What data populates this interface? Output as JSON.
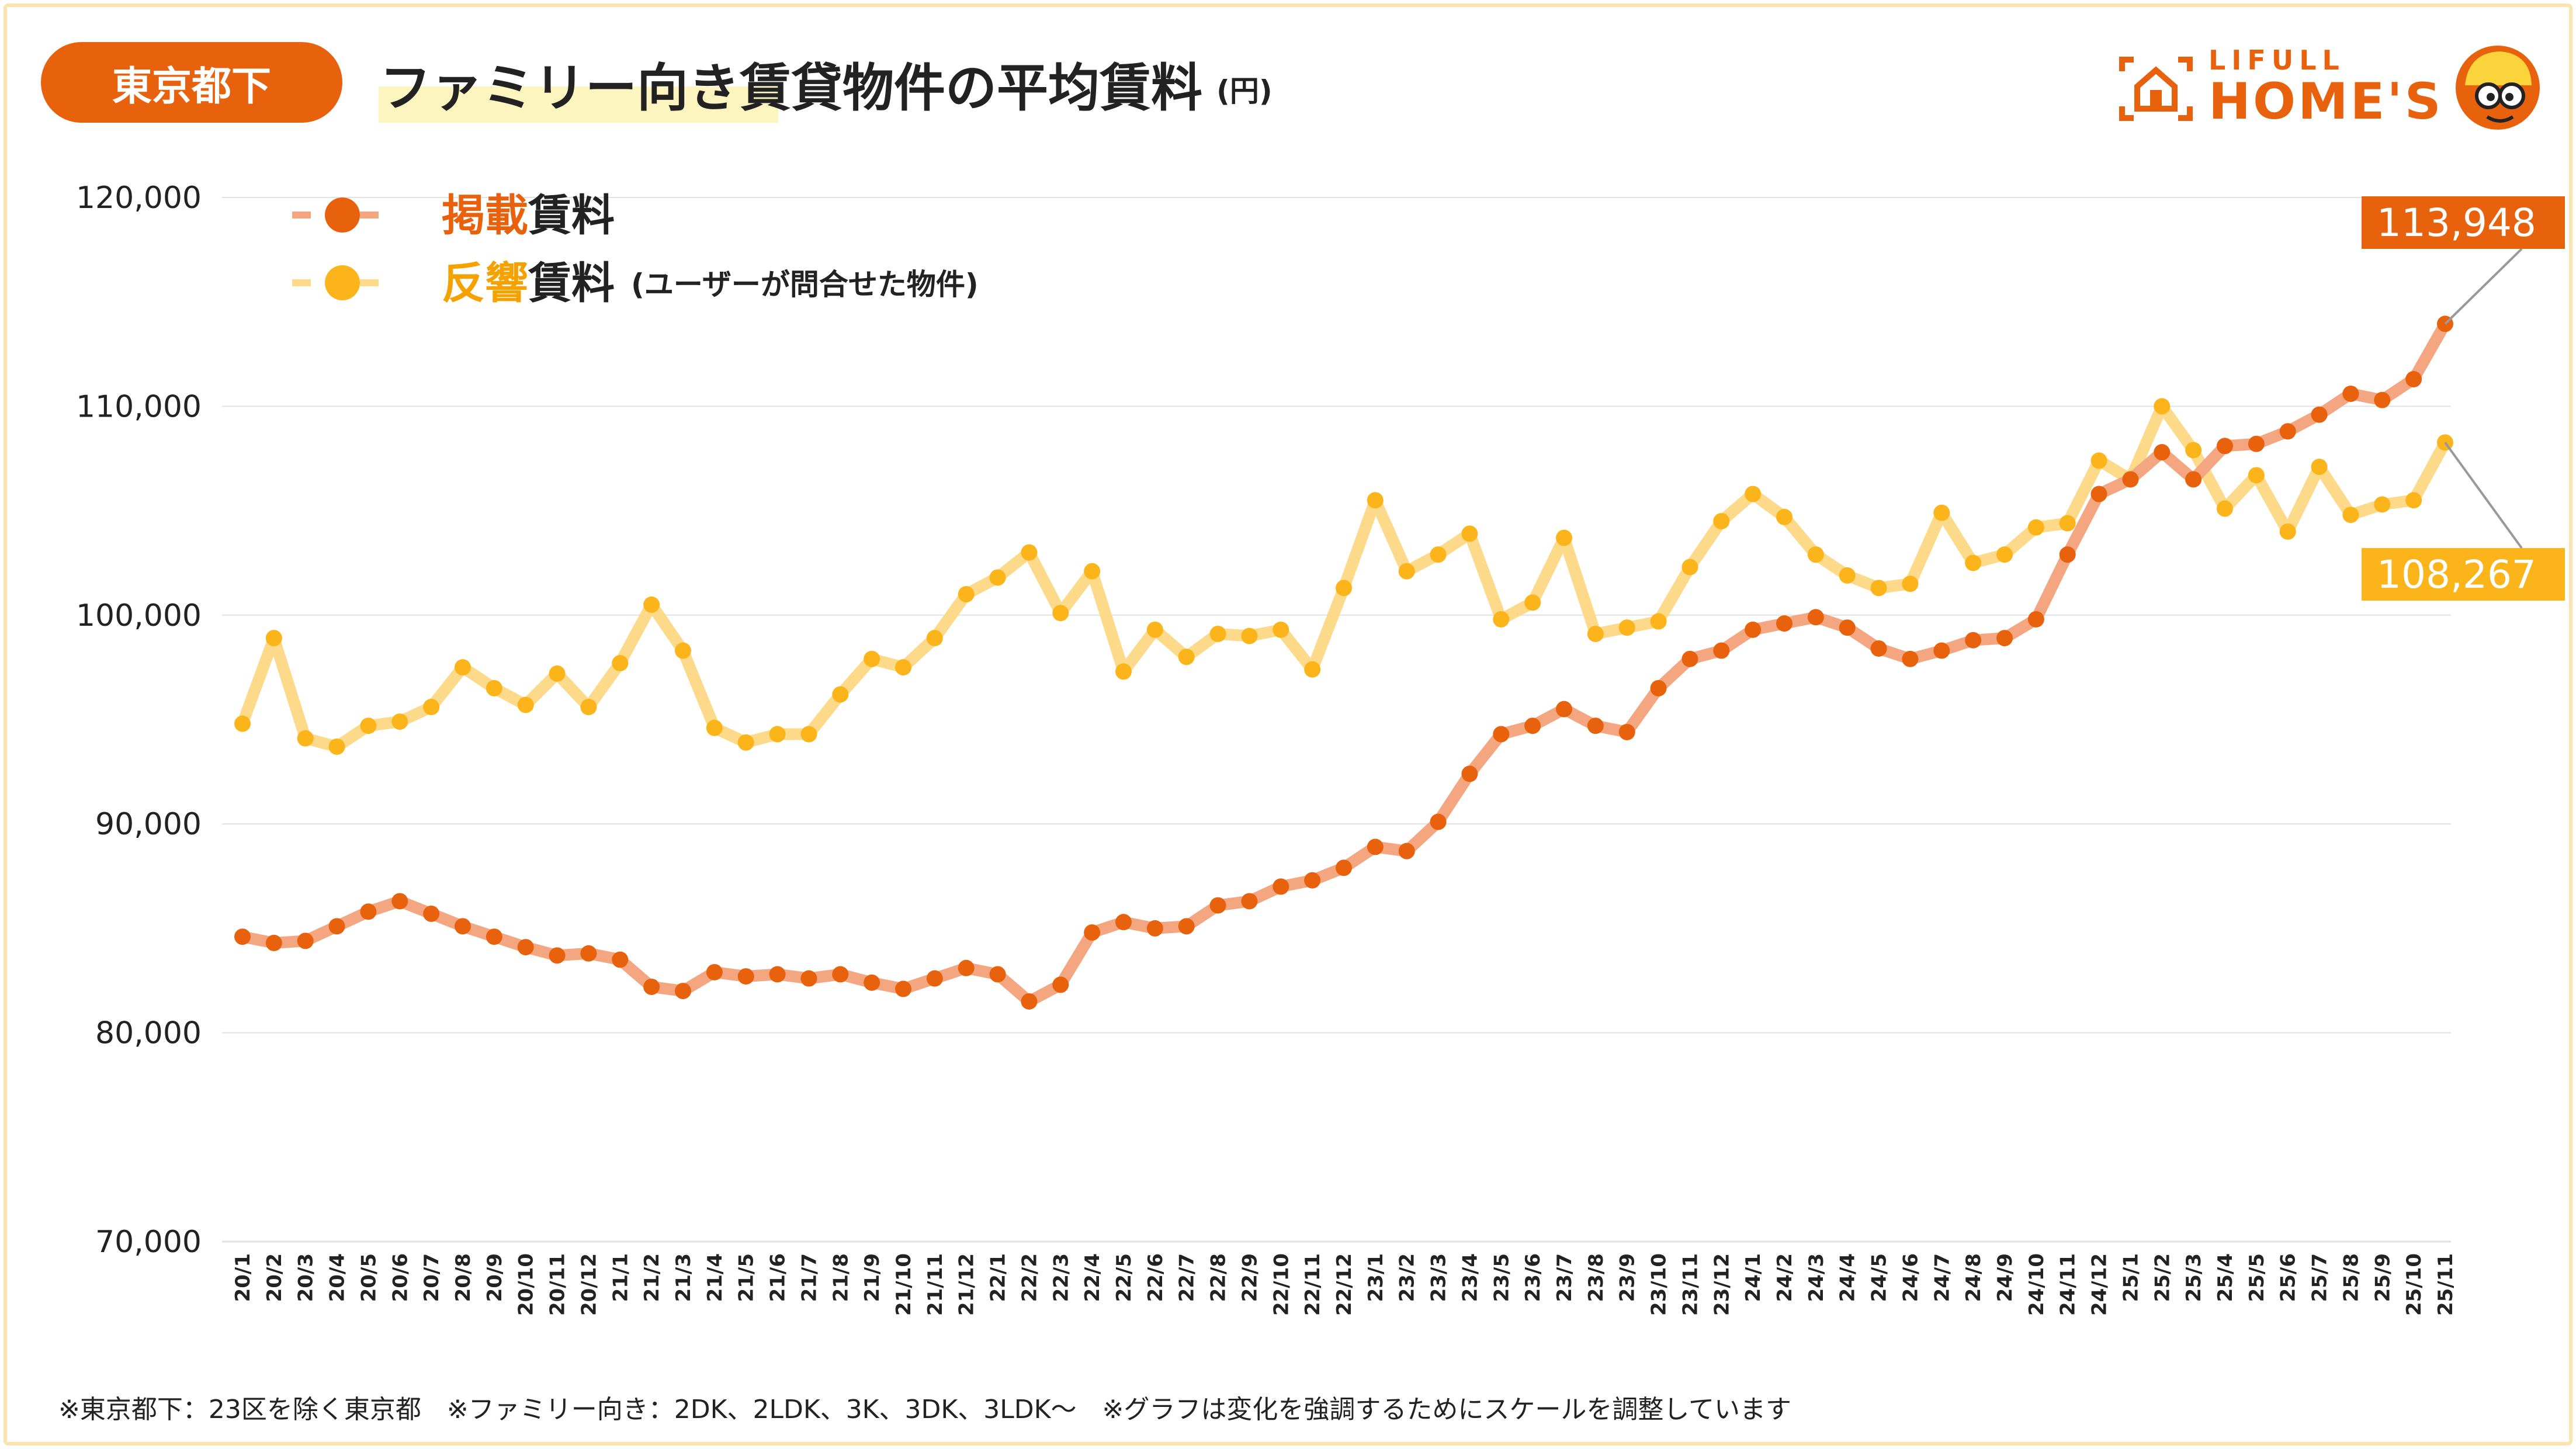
{
  "header": {
    "region": "東京都下",
    "title": "ファミリー向き賃貸物件の平均賃料",
    "unit": "(円)"
  },
  "logo": {
    "line1": "LIFULL",
    "line2": "HOME'S"
  },
  "colors": {
    "listing_line": "#f4a680",
    "listing_marker": "#e8620e",
    "inquiry_line": "#fdd98a",
    "inquiry_marker": "#fbb51b",
    "badge": "#e8620e",
    "grid": "#e2e2e2"
  },
  "chart_data": {
    "type": "line",
    "title": "ファミリー向き賃貸物件の平均賃料",
    "ylabel": "(円)",
    "xlabel": "",
    "ylim": [
      70000,
      120000
    ],
    "yticks": [
      70000,
      80000,
      90000,
      100000,
      110000,
      120000
    ],
    "ytick_labels": [
      "70,000",
      "80,000",
      "90,000",
      "100,000",
      "110,000",
      "120,000"
    ],
    "grid": true,
    "legend_position": "top-left",
    "categories": [
      "20/1",
      "20/2",
      "20/3",
      "20/4",
      "20/5",
      "20/6",
      "20/7",
      "20/8",
      "20/9",
      "20/10",
      "20/11",
      "20/12",
      "21/1",
      "21/2",
      "21/3",
      "21/4",
      "21/5",
      "21/6",
      "21/7",
      "21/8",
      "21/9",
      "21/10",
      "21/11",
      "21/12",
      "22/1",
      "22/2",
      "22/3",
      "22/4",
      "22/5",
      "22/6",
      "22/7",
      "22/8",
      "22/9",
      "22/10",
      "22/11",
      "22/12",
      "23/1",
      "23/2",
      "23/3",
      "23/4",
      "23/5",
      "23/6",
      "23/7",
      "23/8",
      "23/9",
      "23/10",
      "23/11",
      "23/12",
      "24/1",
      "24/2",
      "24/3",
      "24/4",
      "24/5",
      "24/6",
      "24/7",
      "24/8",
      "24/9",
      "24/10",
      "24/11",
      "24/12",
      "25/1",
      "25/2",
      "25/3",
      "25/4",
      "25/5",
      "25/6",
      "25/7",
      "25/8",
      "25/9",
      "25/10",
      "25/11"
    ],
    "series": [
      {
        "name": "掲載賃料",
        "name_accent": "掲載",
        "name_rest": "賃料",
        "note": "",
        "values": [
          84600,
          84300,
          84400,
          85100,
          85800,
          86300,
          85700,
          85100,
          84600,
          84100,
          83700,
          83800,
          83500,
          82200,
          82000,
          82900,
          82700,
          82800,
          82600,
          82800,
          82400,
          82100,
          82600,
          83100,
          82800,
          81500,
          82300,
          84800,
          85300,
          85000,
          85100,
          86100,
          86300,
          87000,
          87300,
          87900,
          88900,
          88700,
          90100,
          92400,
          94300,
          94700,
          95500,
          94700,
          94400,
          96500,
          97900,
          98300,
          99300,
          99600,
          99900,
          99400,
          98400,
          97900,
          98300,
          98800,
          98900,
          99800,
          102900,
          105800,
          106500,
          107800,
          106500,
          108100,
          108200,
          108800,
          109600,
          110600,
          110300,
          111300,
          113948
        ],
        "end_label": "113,948"
      },
      {
        "name": "反響賃料",
        "name_accent": "反響",
        "name_rest": "賃料",
        "note": "(ユーザーが問合せた物件)",
        "values": [
          94800,
          98900,
          94100,
          93700,
          94700,
          94900,
          95600,
          97500,
          96500,
          95700,
          97200,
          95600,
          97700,
          100500,
          98300,
          94600,
          93900,
          94300,
          94300,
          96200,
          97900,
          97500,
          98900,
          101000,
          101800,
          103000,
          100100,
          102100,
          97300,
          99300,
          98000,
          99100,
          99000,
          99300,
          97400,
          101300,
          105500,
          102100,
          102900,
          103900,
          99800,
          100600,
          103700,
          99100,
          99400,
          99700,
          102300,
          104500,
          105800,
          104700,
          102900,
          101900,
          101300,
          101500,
          104900,
          102500,
          102900,
          104200,
          104400,
          107400,
          106500,
          110000,
          107900,
          105100,
          106700,
          104000,
          107100,
          104800,
          105300,
          105500,
          108267
        ],
        "end_label": "108,267"
      }
    ]
  },
  "footnote": "※東京都下：23区を除く東京都　※ファミリー向き：2DK、2LDK、3K、3DK、3LDK〜　※グラフは変化を強調するためにスケールを調整しています"
}
